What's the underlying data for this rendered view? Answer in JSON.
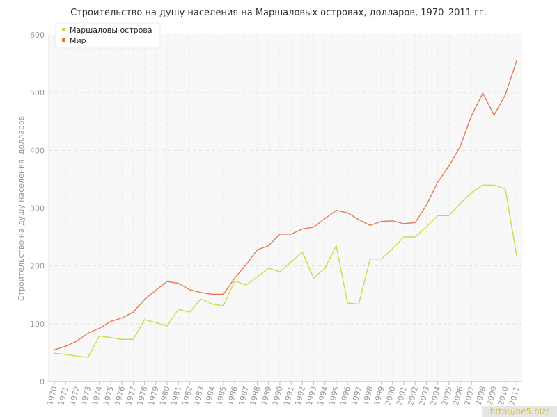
{
  "chart_data": {
    "type": "line",
    "title": "Строительство на душу населения на Маршаловых островах, долларов, 1970–2011 гг.",
    "y_label": "Строительство на душу населения, долларов",
    "categories": [
      "1970",
      "1971",
      "1972",
      "1973",
      "1974",
      "1975",
      "1976",
      "1977",
      "1978",
      "1979",
      "1980",
      "1981",
      "1982",
      "1983",
      "1984",
      "1985",
      "1986",
      "1987",
      "1988",
      "1989",
      "1990",
      "1991",
      "1992",
      "1993",
      "1994",
      "1995",
      "1996",
      "1997",
      "1998",
      "1999",
      "2000",
      "2001",
      "2002",
      "2003",
      "2004",
      "2005",
      "2006",
      "2007",
      "2008",
      "2009",
      "2010",
      "2011"
    ],
    "series": [
      {
        "name": "Маршаловы острова",
        "color": "#c5dc3a",
        "values": [
          49,
          47,
          44,
          42,
          79,
          76,
          73,
          73,
          107,
          102,
          96,
          125,
          120,
          143,
          134,
          131,
          174,
          167,
          181,
          196,
          190,
          207,
          224,
          179,
          196,
          235,
          136,
          134,
          212,
          212,
          230,
          250,
          250,
          268,
          287,
          287,
          308,
          327,
          340,
          340,
          333,
          218
        ]
      },
      {
        "name": "Мир",
        "color": "#e0764a",
        "values": [
          55,
          61,
          70,
          84,
          92,
          104,
          110,
          120,
          142,
          158,
          173,
          170,
          159,
          154,
          151,
          151,
          179,
          202,
          228,
          235,
          255,
          255,
          264,
          267,
          282,
          296,
          292,
          280,
          270,
          277,
          278,
          273,
          275,
          305,
          345,
          373,
          407,
          460,
          499,
          461,
          496,
          555
        ]
      }
    ],
    "ylim": [
      0,
      600
    ],
    "yticks": [
      0,
      100,
      200,
      300,
      400,
      500,
      600
    ],
    "grid": true,
    "legend": "top-left",
    "watermark": "http://be5.biz/"
  }
}
